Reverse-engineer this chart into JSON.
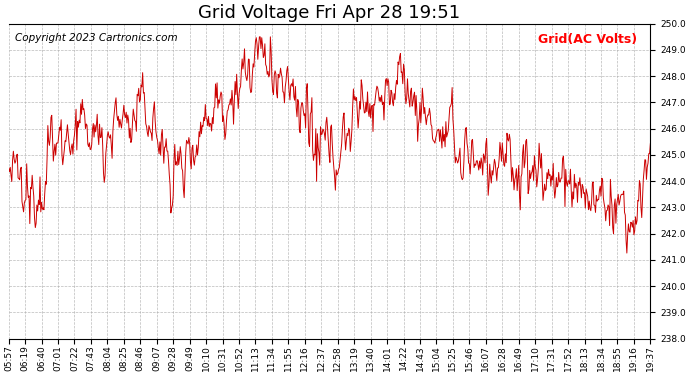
{
  "title": "Grid Voltage Fri Apr 28 19:51",
  "copyright": "Copyright 2023 Cartronics.com",
  "legend_label": "Grid(AC Volts)",
  "legend_color": "#ff0000",
  "line_color": "#cc0000",
  "background_color": "#ffffff",
  "grid_color": "#aaaaaa",
  "ylim": [
    238.0,
    250.0
  ],
  "yticks": [
    238.0,
    239.0,
    240.0,
    241.0,
    242.0,
    243.0,
    244.0,
    245.0,
    246.0,
    247.0,
    248.0,
    249.0,
    250.0
  ],
  "xtick_labels": [
    "05:57",
    "06:19",
    "06:40",
    "07:01",
    "07:22",
    "07:43",
    "08:04",
    "08:25",
    "08:46",
    "09:07",
    "09:28",
    "09:49",
    "10:10",
    "10:31",
    "10:52",
    "11:13",
    "11:34",
    "11:55",
    "12:16",
    "12:37",
    "12:58",
    "13:19",
    "13:40",
    "14:01",
    "14:22",
    "14:43",
    "15:04",
    "15:25",
    "15:46",
    "16:07",
    "16:28",
    "16:49",
    "17:10",
    "17:31",
    "17:52",
    "18:13",
    "18:34",
    "18:55",
    "19:16",
    "19:37"
  ],
  "title_fontsize": 13,
  "tick_fontsize": 6.5,
  "copyright_fontsize": 7.5,
  "legend_fontsize": 9,
  "line_width": 0.7,
  "figsize": [
    6.9,
    3.75
  ],
  "dpi": 100
}
